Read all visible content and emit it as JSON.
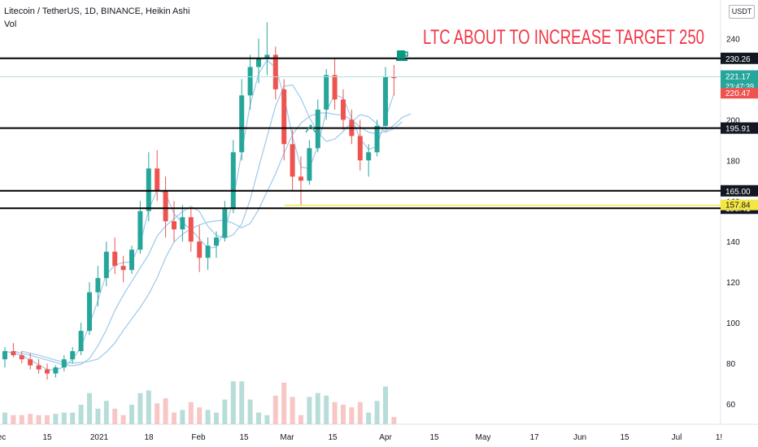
{
  "header": {
    "symbol_line": "Litecoin / TetherUS, 1D, BINANCE, Heikin Ashi",
    "volume_label": "Vol",
    "currency_badge": "USDT"
  },
  "annotation": {
    "headline": "LTC ABOUT TO INCREASE TARGET 250",
    "headline_color": "#f23645",
    "icon": "coffee-cup-icon",
    "icon_color": "#089981"
  },
  "colors": {
    "up": "#26a69a",
    "down": "#ef5350",
    "ma": "#9cc9ea",
    "hline": "#000000",
    "highlight_line": "#f5e642",
    "price_tag": "#26a69a",
    "last_close_tag": "#ef5350"
  },
  "chart_data": {
    "type": "candlestick",
    "title": "Litecoin / TetherUS, 1D, BINANCE, Heikin Ashi",
    "ylim": [
      50,
      255
    ],
    "y_ticks": [
      60,
      80,
      100,
      120,
      140,
      160,
      180,
      200,
      220,
      240
    ],
    "x_tick_labels": [
      "ec",
      "15",
      "2021",
      "18",
      "Feb",
      "15",
      "Mar",
      "15",
      "Apr",
      "15",
      "May",
      "17",
      "Jun",
      "15",
      "Jul",
      "1!"
    ],
    "grid": false,
    "candles": [
      {
        "o": 82,
        "h": 88,
        "l": 78,
        "c": 86
      },
      {
        "o": 86,
        "h": 90,
        "l": 83,
        "c": 84
      },
      {
        "o": 84,
        "h": 86,
        "l": 80,
        "c": 82
      },
      {
        "o": 82,
        "h": 85,
        "l": 77,
        "c": 79
      },
      {
        "o": 79,
        "h": 82,
        "l": 75,
        "c": 77
      },
      {
        "o": 77,
        "h": 80,
        "l": 72,
        "c": 75
      },
      {
        "o": 75,
        "h": 79,
        "l": 73,
        "c": 78
      },
      {
        "o": 78,
        "h": 84,
        "l": 76,
        "c": 82
      },
      {
        "o": 82,
        "h": 88,
        "l": 80,
        "c": 86
      },
      {
        "o": 86,
        "h": 100,
        "l": 84,
        "c": 96
      },
      {
        "o": 96,
        "h": 120,
        "l": 94,
        "c": 115
      },
      {
        "o": 115,
        "h": 128,
        "l": 108,
        "c": 122
      },
      {
        "o": 122,
        "h": 140,
        "l": 118,
        "c": 135
      },
      {
        "o": 135,
        "h": 142,
        "l": 124,
        "c": 128
      },
      {
        "o": 128,
        "h": 133,
        "l": 120,
        "c": 126
      },
      {
        "o": 126,
        "h": 138,
        "l": 124,
        "c": 136
      },
      {
        "o": 136,
        "h": 160,
        "l": 134,
        "c": 155
      },
      {
        "o": 155,
        "h": 184,
        "l": 150,
        "c": 176
      },
      {
        "o": 176,
        "h": 185,
        "l": 160,
        "c": 165
      },
      {
        "o": 165,
        "h": 172,
        "l": 142,
        "c": 150
      },
      {
        "o": 150,
        "h": 160,
        "l": 140,
        "c": 146
      },
      {
        "o": 146,
        "h": 158,
        "l": 140,
        "c": 152
      },
      {
        "o": 152,
        "h": 156,
        "l": 135,
        "c": 140
      },
      {
        "o": 140,
        "h": 148,
        "l": 125,
        "c": 132
      },
      {
        "o": 132,
        "h": 142,
        "l": 126,
        "c": 138
      },
      {
        "o": 138,
        "h": 145,
        "l": 132,
        "c": 142
      },
      {
        "o": 142,
        "h": 160,
        "l": 140,
        "c": 156
      },
      {
        "o": 156,
        "h": 190,
        "l": 154,
        "c": 184
      },
      {
        "o": 184,
        "h": 220,
        "l": 180,
        "c": 212
      },
      {
        "o": 212,
        "h": 232,
        "l": 205,
        "c": 226
      },
      {
        "o": 226,
        "h": 240,
        "l": 218,
        "c": 230
      },
      {
        "o": 230,
        "h": 248,
        "l": 222,
        "c": 232
      },
      {
        "o": 232,
        "h": 236,
        "l": 210,
        "c": 215
      },
      {
        "o": 215,
        "h": 220,
        "l": 180,
        "c": 188
      },
      {
        "o": 188,
        "h": 195,
        "l": 165,
        "c": 172
      },
      {
        "o": 172,
        "h": 182,
        "l": 158,
        "c": 170
      },
      {
        "o": 170,
        "h": 190,
        "l": 168,
        "c": 186
      },
      {
        "o": 186,
        "h": 210,
        "l": 184,
        "c": 205
      },
      {
        "o": 205,
        "h": 225,
        "l": 200,
        "c": 222
      },
      {
        "o": 222,
        "h": 230,
        "l": 205,
        "c": 210
      },
      {
        "o": 210,
        "h": 215,
        "l": 195,
        "c": 200
      },
      {
        "o": 200,
        "h": 205,
        "l": 188,
        "c": 192
      },
      {
        "o": 192,
        "h": 200,
        "l": 175,
        "c": 180
      },
      {
        "o": 180,
        "h": 188,
        "l": 172,
        "c": 184
      },
      {
        "o": 184,
        "h": 200,
        "l": 182,
        "c": 197
      },
      {
        "o": 197,
        "h": 226,
        "l": 195,
        "c": 221
      },
      {
        "o": 221,
        "h": 227,
        "l": 212,
        "c": 220.5
      }
    ]
  },
  "levels": [
    {
      "value": 230.26,
      "label": "230.26",
      "style": "line"
    },
    {
      "value": 195.91,
      "label": "195.91",
      "style": "line"
    },
    {
      "value": 165.0,
      "label": "165.00",
      "style": "line"
    },
    {
      "value": 156.41,
      "label": "156.41",
      "style": "line"
    },
    {
      "value": 157.84,
      "label": "157.84",
      "style": "highlight"
    }
  ],
  "price_tags": [
    {
      "value": 221.17,
      "label": "221.17",
      "sub": "23:47:39",
      "kind": "last"
    },
    {
      "value": 220.47,
      "label": "220.47",
      "kind": "close"
    }
  ]
}
